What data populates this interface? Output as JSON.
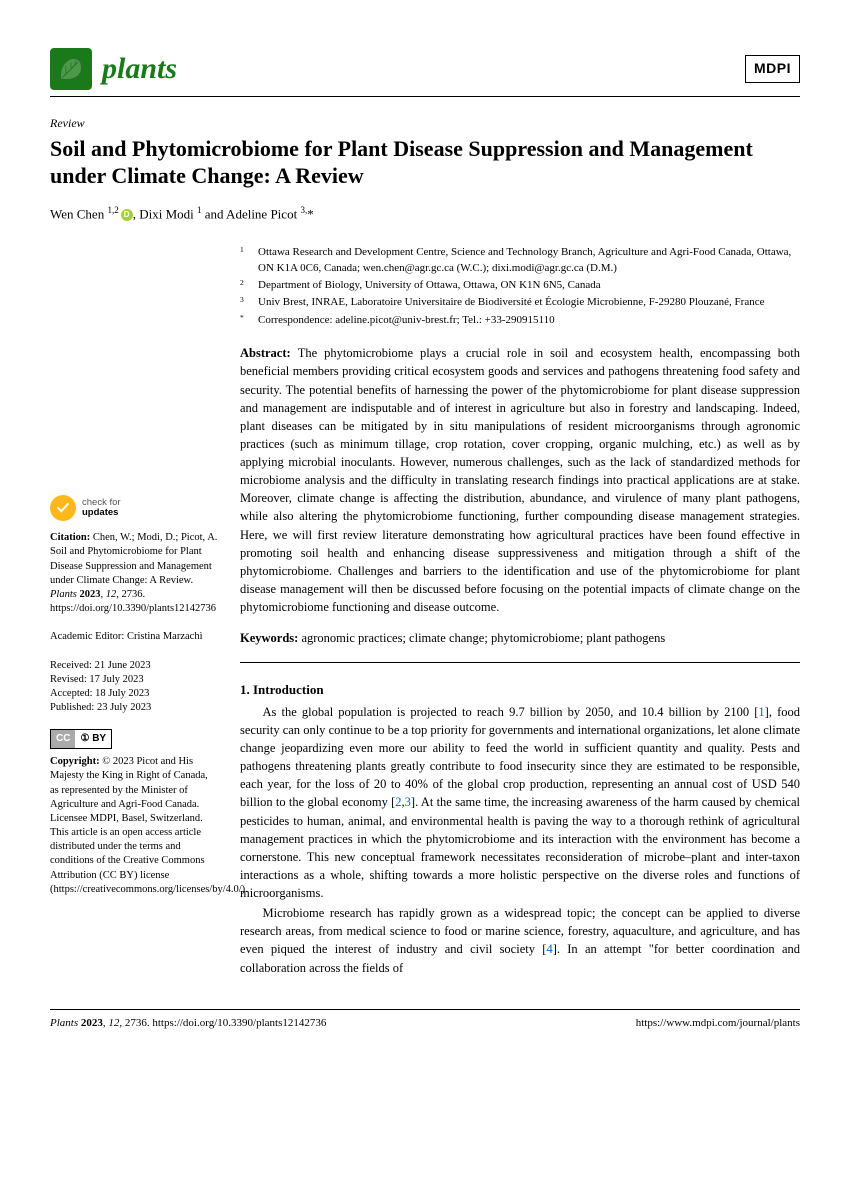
{
  "header": {
    "journal": "plants",
    "publisher": "MDPI"
  },
  "article": {
    "type": "Review",
    "title": "Soil and Phytomicrobiome for Plant Disease Suppression and Management under Climate Change: A Review",
    "authors_html": "Wen Chen <sup>1,2</sup><span class=\"orcid\"></span>, Dixi Modi <sup>1</sup> and Adeline Picot <sup>3,</sup>*"
  },
  "affiliations": [
    {
      "n": "1",
      "text": "Ottawa Research and Development Centre, Science and Technology Branch, Agriculture and Agri-Food Canada, Ottawa, ON K1A 0C6, Canada; wen.chen@agr.gc.ca (W.C.); dixi.modi@agr.gc.ca (D.M.)"
    },
    {
      "n": "2",
      "text": "Department of Biology, University of Ottawa, Ottawa, ON K1N 6N5, Canada"
    },
    {
      "n": "3",
      "text": "Univ Brest, INRAE, Laboratoire Universitaire de Biodiversité et Écologie Microbienne, F-29280 Plouzané, France"
    },
    {
      "n": "*",
      "text": "Correspondence: adeline.picot@univ-brest.fr; Tel.: +33-290915110"
    }
  ],
  "abstract": "The phytomicrobiome plays a crucial role in soil and ecosystem health, encompassing both beneficial members providing critical ecosystem goods and services and pathogens threatening food safety and security. The potential benefits of harnessing the power of the phytomicrobiome for plant disease suppression and management are indisputable and of interest in agriculture but also in forestry and landscaping. Indeed, plant diseases can be mitigated by in situ manipulations of resident microorganisms through agronomic practices (such as minimum tillage, crop rotation, cover cropping, organic mulching, etc.) as well as by applying microbial inoculants. However, numerous challenges, such as the lack of standardized methods for microbiome analysis and the difficulty in translating research findings into practical applications are at stake. Moreover, climate change is affecting the distribution, abundance, and virulence of many plant pathogens, while also altering the phytomicrobiome functioning, further compounding disease management strategies. Here, we will first review literature demonstrating how agricultural practices have been found effective in promoting soil health and enhancing disease suppressiveness and mitigation through a shift of the phytomicrobiome. Challenges and barriers to the identification and use of the phytomicrobiome for plant disease management will then be discussed before focusing on the potential impacts of climate change on the phytomicrobiome functioning and disease outcome.",
  "keywords": "agronomic practices; climate change; phytomicrobiome; plant pathogens",
  "sidebar": {
    "check_l1": "check for",
    "check_l2": "updates",
    "citation": "Citation: Chen, W.; Modi, D.; Picot, A. Soil and Phytomicrobiome for Plant Disease Suppression and Management under Climate Change: A Review. Plants 2023, 12, 2736. https://doi.org/10.3390/plants12142736",
    "editor": "Academic Editor: Cristina Marzachì",
    "received": "Received: 21 June 2023",
    "revised": "Revised: 17 July 2023",
    "accepted": "Accepted: 18 July 2023",
    "published": "Published: 23 July 2023",
    "copyright": "Copyright: © 2023 Picot and His Majesty the King in Right of Canada, as represented by the Minister of Agriculture and Agri-Food Canada. Licensee MDPI, Basel, Switzerland. This article is an open access article distributed under the terms and conditions of the Creative Commons Attribution (CC BY) license (https://creativecommons.org/licenses/by/4.0/)."
  },
  "section": {
    "head": "1. Introduction",
    "p1_a": "As the global population is projected to reach 9.7 billion by 2050, and 10.4 billion by 2100 [",
    "p1_b": "], food security can only continue to be a top priority for governments and international organizations, let alone climate change jeopardizing even more our ability to feed the world in sufficient quantity and quality. Pests and pathogens threatening plants greatly contribute to food insecurity since they are estimated to be responsible, each year, for the loss of 20 to 40% of the global crop production, representing an annual cost of USD 540 billion to the global economy [",
    "p1_c": "]. At the same time, the increasing awareness of the harm caused by chemical pesticides to human, animal, and environmental health is paving the way to a thorough rethink of agricultural management practices in which the phytomicrobiome and its interaction with the environment has become a cornerstone. This new conceptual framework necessitates reconsideration of microbe–plant and inter-taxon interactions as a whole, shifting towards a more holistic perspective on the diverse roles and functions of microorganisms.",
    "p2_a": "Microbiome research has rapidly grown as a widespread topic; the concept can be applied to diverse research areas, from medical science to food or marine science, forestry, aquaculture, and agriculture, and has even piqued the interest of industry and civil society [",
    "p2_b": "]. In an attempt \"for better coordination and collaboration across the fields of",
    "r1": "1",
    "r2": "2",
    "r3": "3",
    "r4": "4"
  },
  "footer": {
    "left": "Plants 2023, 12, 2736. https://doi.org/10.3390/plants12142736",
    "right": "https://www.mdpi.com/journal/plants"
  }
}
